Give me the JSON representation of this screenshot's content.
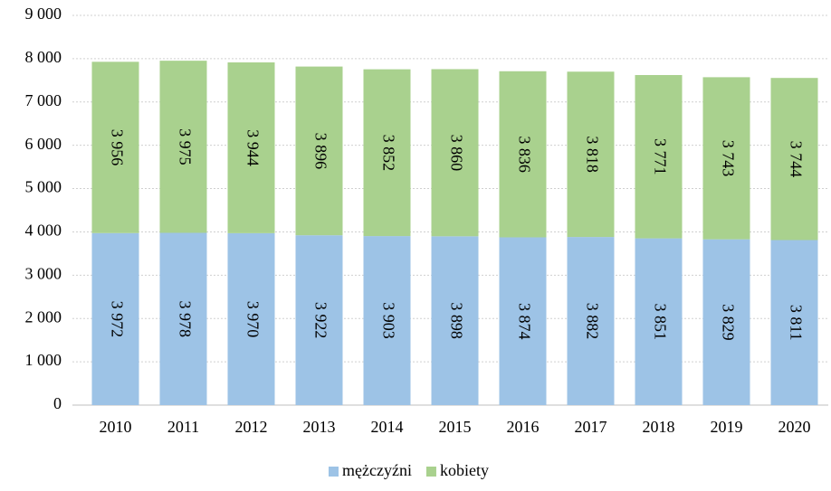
{
  "chart_data": {
    "type": "stacked_bar",
    "categories": [
      "2010",
      "2011",
      "2012",
      "2013",
      "2014",
      "2015",
      "2016",
      "2017",
      "2018",
      "2019",
      "2020"
    ],
    "series": [
      {
        "name": "mężczyźni",
        "color": "#9dc3e6",
        "values": [
          3972,
          3978,
          3970,
          3922,
          3903,
          3898,
          3874,
          3882,
          3851,
          3829,
          3811
        ],
        "value_labels": [
          "3 972",
          "3 978",
          "3 970",
          "3 922",
          "3 903",
          "3 898",
          "3 874",
          "3 882",
          "3 851",
          "3 829",
          "3 811"
        ]
      },
      {
        "name": "kobiety",
        "color": "#a9d18e",
        "values": [
          3956,
          3975,
          3944,
          3896,
          3852,
          3860,
          3836,
          3818,
          3771,
          3743,
          3744
        ],
        "value_labels": [
          "3 956",
          "3 975",
          "3 944",
          "3 896",
          "3 852",
          "3 860",
          "3 836",
          "3 818",
          "3 771",
          "3 743",
          "3 744"
        ]
      }
    ],
    "ylim": [
      0,
      9000
    ],
    "yticks": [
      0,
      {
        "value": 1000,
        "label": "1 000"
      },
      {
        "value": 2000,
        "label": "2 000"
      },
      {
        "value": 3000,
        "label": "3 000"
      },
      {
        "value": 4000,
        "label": "4 000"
      },
      {
        "value": 5000,
        "label": "5 000"
      },
      {
        "value": 6000,
        "label": "6 000"
      },
      {
        "value": 7000,
        "label": "7 000"
      },
      {
        "value": 8000,
        "label": "8 000"
      },
      {
        "value": 9000,
        "label": "9 000"
      }
    ],
    "grid": true,
    "legend": "bottom"
  }
}
